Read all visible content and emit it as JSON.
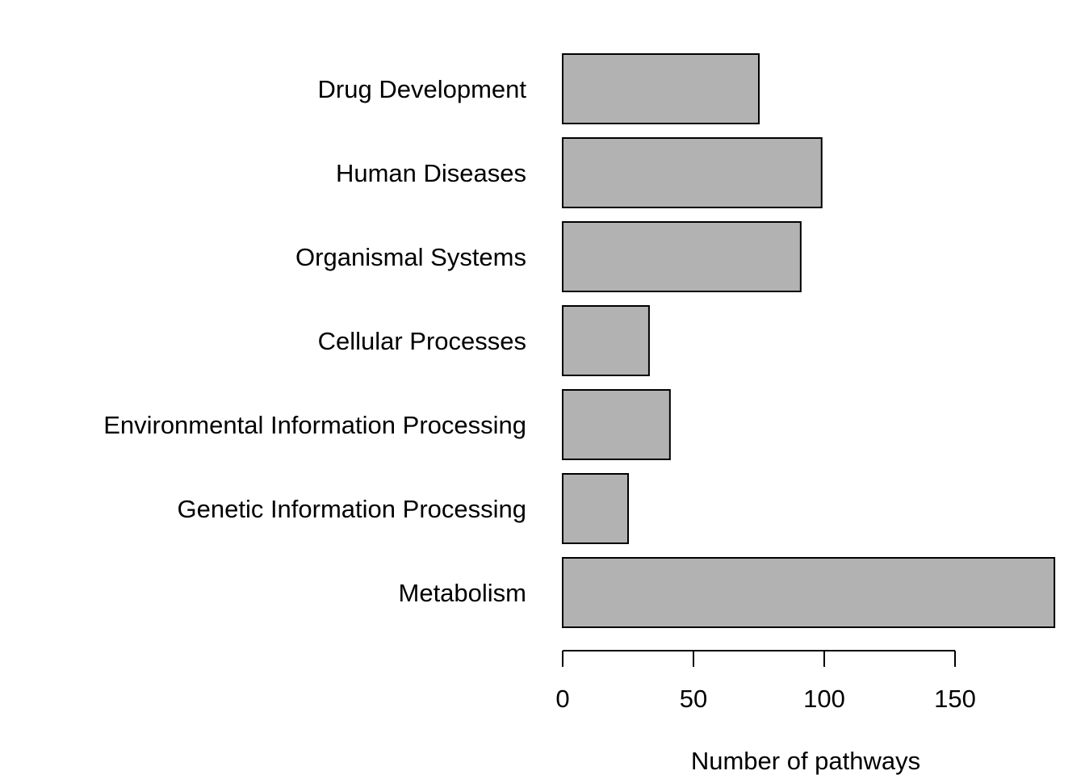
{
  "chart_data": {
    "type": "bar",
    "orientation": "horizontal",
    "categories": [
      "Drug Development",
      "Human Diseases",
      "Organismal Systems",
      "Cellular Processes",
      "Environmental Information Processing",
      "Genetic Information Processing",
      "Metabolism"
    ],
    "values": [
      75,
      99,
      91,
      33,
      41,
      25,
      188
    ],
    "xlabel": "Number of pathways",
    "ylabel": "",
    "x_ticks": [
      0,
      50,
      100,
      150
    ],
    "x_tick_labels": [
      "0",
      "50",
      "100",
      "150"
    ],
    "xlim": [
      0,
      188
    ],
    "grid": false,
    "bar_color": "#b2b2b2",
    "bar_edge_color": "#000000"
  }
}
